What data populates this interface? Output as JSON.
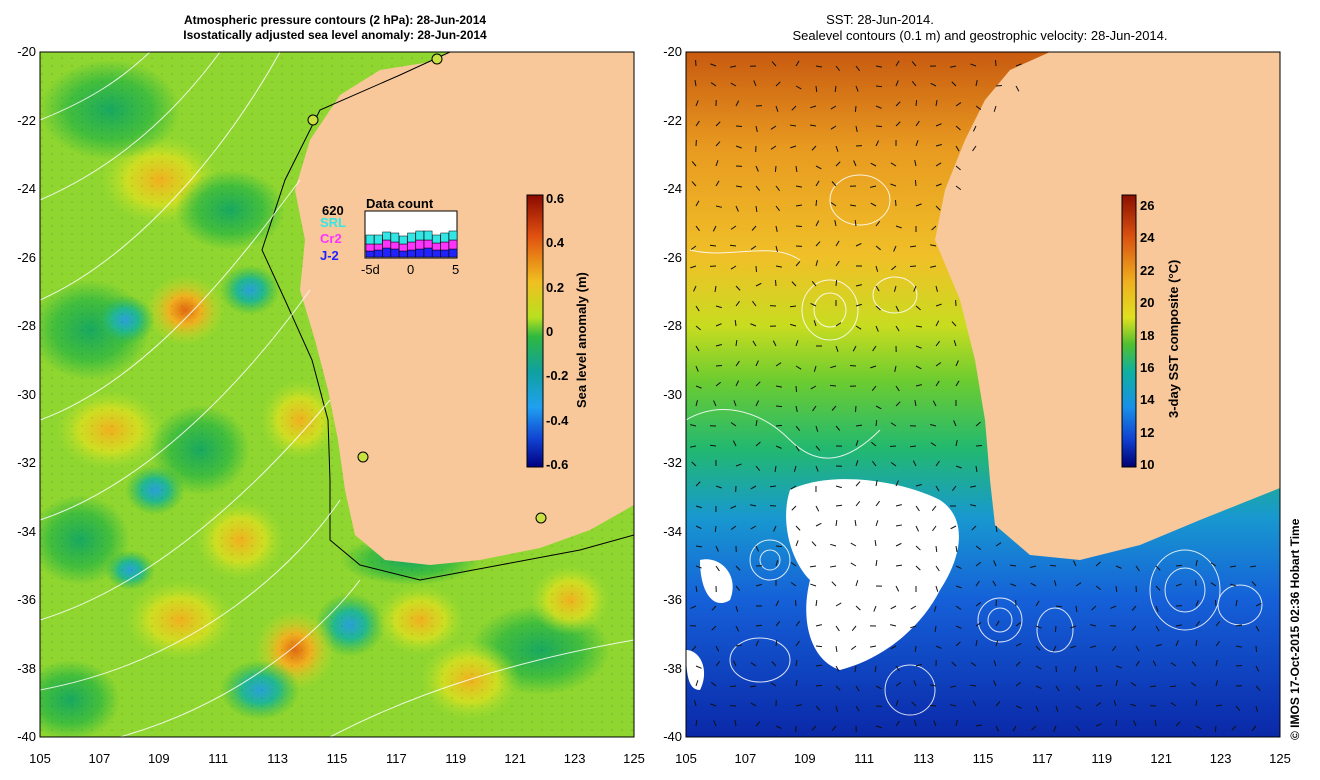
{
  "left_panel": {
    "title_line1": "Atmospheric pressure contours (2 hPa): 28-Jun-2014",
    "title_line2": "Isostatically adjusted sea level anomaly: 28-Jun-2014",
    "colorbar": {
      "label": "Sea level anomaly (m)",
      "ticks": [
        "0.6",
        "0.4",
        "0.2",
        "0",
        "-0.2",
        "-0.4",
        "-0.6"
      ]
    },
    "data_count": {
      "title": "Data count",
      "count": "620",
      "series": [
        {
          "name": "SRL",
          "color": "#33e6e6"
        },
        {
          "name": "Cr2",
          "color": "#ff33ff"
        },
        {
          "name": "J-2",
          "color": "#2222ff"
        }
      ],
      "x_ticks": [
        "-5d",
        "0",
        "5"
      ]
    }
  },
  "right_panel": {
    "title_line1": "SST: 28-Jun-2014.",
    "title_line2": "Sealevel contours (0.1 m) and geostrophic velocity: 28-Jun-2014.",
    "colorbar": {
      "label": "3-day SST composite (°C)",
      "ticks": [
        "26",
        "24",
        "22",
        "20",
        "18",
        "16",
        "14",
        "12",
        "10"
      ]
    }
  },
  "axes": {
    "y_ticks": [
      "-20",
      "-22",
      "-24",
      "-26",
      "-28",
      "-30",
      "-32",
      "-34",
      "-36",
      "-38",
      "-40"
    ],
    "x_ticks": [
      "105",
      "107",
      "109",
      "111",
      "113",
      "115",
      "117",
      "119",
      "121",
      "123",
      "125"
    ]
  },
  "credit": "© IMOS 17-Oct-2015 02:36 Hobart Time",
  "colors": {
    "land": "#f8c89a",
    "ocean_left": "#66cc33",
    "ocean_right_warm": "#e8a020",
    "ocean_right_cold": "#1144cc"
  }
}
